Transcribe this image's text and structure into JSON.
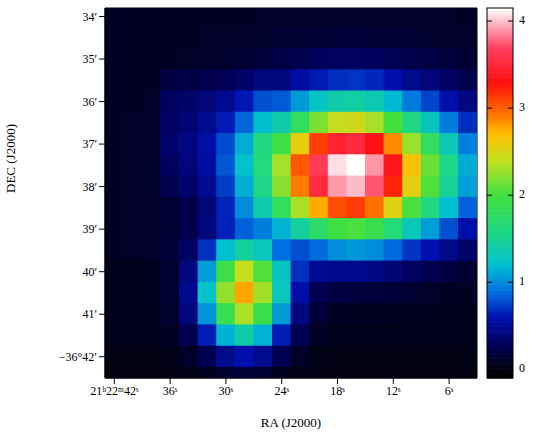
{
  "chart_data": {
    "type": "heatmap",
    "x_label": "RA (J2000)",
    "y_label": "DEC (J2000)",
    "x": [
      42,
      40,
      38,
      36,
      34,
      32,
      30,
      28,
      26,
      24,
      22,
      20,
      18,
      16,
      14,
      12,
      10,
      8,
      6,
      4
    ],
    "y": [
      34,
      34.5,
      35,
      35.5,
      36,
      36.5,
      37,
      37.5,
      38,
      38.5,
      39,
      39.5,
      40,
      40.5,
      41,
      41.5,
      42,
      42.5
    ],
    "values": [
      [
        0.1,
        0.1,
        0.1,
        0.1,
        0.1,
        0.1,
        0.1,
        0.1,
        0.11,
        0.11,
        0.11,
        0.11,
        0.12,
        0.12,
        0.12,
        0.11,
        0.11,
        0.11,
        0.11,
        0.1
      ],
      [
        0.1,
        0.1,
        0.1,
        0.1,
        0.1,
        0.11,
        0.11,
        0.12,
        0.13,
        0.14,
        0.15,
        0.16,
        0.17,
        0.17,
        0.16,
        0.15,
        0.14,
        0.13,
        0.12,
        0.12
      ],
      [
        0.1,
        0.1,
        0.1,
        0.1,
        0.11,
        0.12,
        0.13,
        0.15,
        0.19,
        0.22,
        0.26,
        0.3,
        0.32,
        0.32,
        0.31,
        0.28,
        0.24,
        0.21,
        0.18,
        0.16
      ],
      [
        0.1,
        0.1,
        0.1,
        0.21,
        0.22,
        0.25,
        0.28,
        0.35,
        0.43,
        0.43,
        0.54,
        0.63,
        0.69,
        0.71,
        0.67,
        0.59,
        0.48,
        0.4,
        0.32,
        0.25
      ],
      [
        0.1,
        0.1,
        0.11,
        0.32,
        0.35,
        0.4,
        0.49,
        0.62,
        0.8,
        0.83,
        1.06,
        1.27,
        1.4,
        1.43,
        1.35,
        1.17,
        0.94,
        0.77,
        0.58,
        0.43
      ],
      [
        0.1,
        0.11,
        0.12,
        0.34,
        0.39,
        0.48,
        0.63,
        0.87,
        1.2,
        1.39,
        1.81,
        2.18,
        2.42,
        2.47,
        2.32,
        2.01,
        1.6,
        1.29,
        0.95,
        0.69
      ],
      [
        0.1,
        0.11,
        0.12,
        0.36,
        0.43,
        0.56,
        0.78,
        1.12,
        1.6,
        1.97,
        2.58,
        3.12,
        3.46,
        3.53,
        3.32,
        2.87,
        2.28,
        1.82,
        1.34,
        0.96
      ],
      [
        0.1,
        0.11,
        0.13,
        0.32,
        0.4,
        0.55,
        0.82,
        1.22,
        1.63,
        2.31,
        3.03,
        3.66,
        4.07,
        4.15,
        3.9,
        3.36,
        2.67,
        2.13,
        1.56,
        1.12
      ],
      [
        0.1,
        0.11,
        0.13,
        0.26,
        0.35,
        0.49,
        0.74,
        1.13,
        1.57,
        2.22,
        2.91,
        3.52,
        3.91,
        3.99,
        3.75,
        3.23,
        2.57,
        2.05,
        1.5,
        1.08
      ],
      [
        0.1,
        0.11,
        0.12,
        0.16,
        0.24,
        0.4,
        0.66,
        1.0,
        1.39,
        1.83,
        2.32,
        2.77,
        3.07,
        3.13,
        2.95,
        2.54,
        2.03,
        1.62,
        1.2,
        0.86
      ],
      [
        0.1,
        0.11,
        0.12,
        0.15,
        0.24,
        0.42,
        0.65,
        0.85,
        0.95,
        1.15,
        1.45,
        1.75,
        1.99,
        2.03,
        1.91,
        1.65,
        1.32,
        1.07,
        0.8,
        0.58
      ],
      [
        0.1,
        0.11,
        0.12,
        0.17,
        0.33,
        0.7,
        1.2,
        1.45,
        1.3,
        0.9,
        0.8,
        0.88,
        1.0,
        1.05,
        1.0,
        0.88,
        0.72,
        0.6,
        0.46,
        0.35
      ],
      [
        0.05,
        0.05,
        0.07,
        0.14,
        0.42,
        1.07,
        1.95,
        2.42,
        2.05,
        1.27,
        0.7,
        0.5,
        0.47,
        0.47,
        0.44,
        0.39,
        0.32,
        0.26,
        0.2,
        0.16
      ],
      [
        0.05,
        0.05,
        0.07,
        0.15,
        0.47,
        1.24,
        2.26,
        2.78,
        2.3,
        1.3,
        0.57,
        0.27,
        0.21,
        0.19,
        0.18,
        0.17,
        0.14,
        0.12,
        0.1,
        0.09
      ],
      [
        0.05,
        0.05,
        0.06,
        0.13,
        0.4,
        1.04,
        1.9,
        2.33,
        1.92,
        1.06,
        0.43,
        0.17,
        0.1,
        0.09,
        0.09,
        0.08,
        0.07,
        0.07,
        0.06,
        0.06
      ],
      [
        0.05,
        0.05,
        0.06,
        0.1,
        0.26,
        0.64,
        1.15,
        1.4,
        1.15,
        0.64,
        0.26,
        0.1,
        0.06,
        0.05,
        0.05,
        0.05,
        0.05,
        0.05,
        0.05,
        0.05
      ],
      [
        0.02,
        0.02,
        0.02,
        0.04,
        0.11,
        0.27,
        0.48,
        0.59,
        0.48,
        0.27,
        0.11,
        0.04,
        0.02,
        0.02,
        0.02,
        0.02,
        0.02,
        0.02,
        0.02,
        0.02
      ],
      [
        0,
        0,
        0,
        0.01,
        0.03,
        0.07,
        0.14,
        0.17,
        0.14,
        0.07,
        0.03,
        0.01,
        0,
        0,
        0,
        0,
        0,
        0,
        0,
        0
      ]
    ],
    "xlim": [
      43,
      3
    ],
    "ylim": [
      42.5,
      33.8
    ],
    "xticks": [
      {
        "value": 42,
        "label": "21ʰ22ᵐ42ˢ"
      },
      {
        "value": 36,
        "label": "36ˢ"
      },
      {
        "value": 30,
        "label": "30ˢ"
      },
      {
        "value": 24,
        "label": "24ˢ"
      },
      {
        "value": 18,
        "label": "18ˢ"
      },
      {
        "value": 12,
        "label": "12ˢ"
      },
      {
        "value": 6,
        "label": "6ˢ"
      }
    ],
    "yticks": [
      {
        "value": 34,
        "label": "34′"
      },
      {
        "value": 35,
        "label": "35′"
      },
      {
        "value": 36,
        "label": "36′"
      },
      {
        "value": 37,
        "label": "37′"
      },
      {
        "value": 38,
        "label": "38′"
      },
      {
        "value": 39,
        "label": "39′"
      },
      {
        "value": 40,
        "label": "40′"
      },
      {
        "value": 41,
        "label": "41′"
      },
      {
        "value": 42,
        "label": "−36°42′"
      }
    ],
    "colorbar": {
      "range": [
        -0.1,
        4.15
      ],
      "ticks": [
        0,
        1,
        2,
        3,
        4
      ]
    }
  }
}
